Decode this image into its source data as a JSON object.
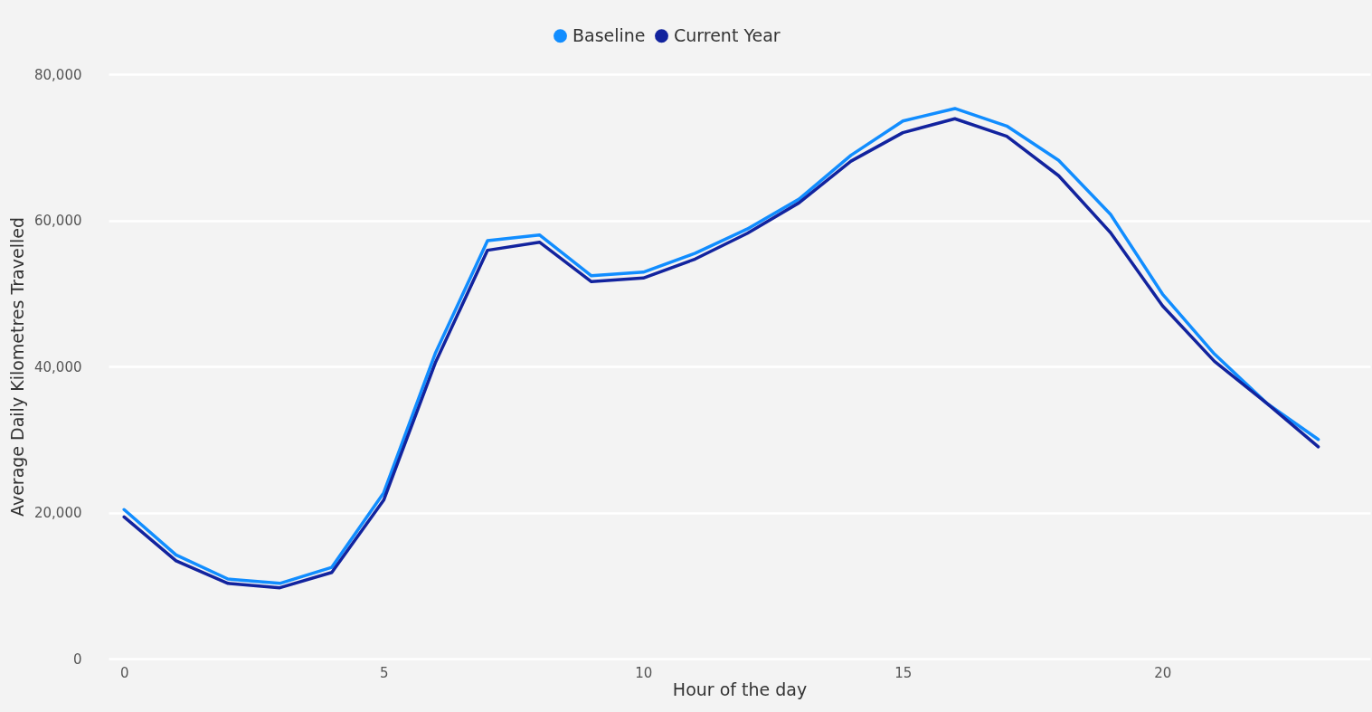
{
  "chart_data": {
    "type": "line",
    "xlabel": "Hour of the day",
    "ylabel": "Average Daily Kilometres Travelled",
    "x": [
      0,
      1,
      2,
      3,
      4,
      5,
      6,
      7,
      8,
      9,
      10,
      11,
      12,
      13,
      14,
      15,
      16,
      17,
      18,
      19,
      20,
      21,
      22,
      23
    ],
    "series": [
      {
        "name": "Baseline",
        "color": "#118dff",
        "values": [
          20400,
          14200,
          10900,
          10300,
          12500,
          22700,
          41900,
          57200,
          58000,
          52400,
          52900,
          55500,
          58800,
          62900,
          68900,
          73600,
          75300,
          72900,
          68200,
          60800,
          49900,
          41700,
          35000,
          30000
        ]
      },
      {
        "name": "Current Year",
        "color": "#12239e",
        "values": [
          19400,
          13400,
          10300,
          9700,
          11800,
          21700,
          40600,
          55900,
          57000,
          51600,
          52100,
          54700,
          58200,
          62400,
          68100,
          72000,
          73900,
          71500,
          66100,
          58300,
          48300,
          40700,
          35000,
          29000
        ]
      }
    ],
    "xlim": [
      -0.3,
      24
    ],
    "xticks": [
      0,
      5,
      10,
      15,
      20
    ],
    "ylim": [
      0,
      80000
    ],
    "yticks": [
      0,
      {
        "value": 20000,
        "label": "20,000"
      },
      {
        "value": 40000,
        "label": "40,000"
      },
      {
        "value": 60000,
        "label": "60,000"
      },
      {
        "value": 80000,
        "label": "80,000"
      }
    ],
    "grid": "y",
    "legend": "top",
    "marker": "none",
    "line_style": "solid"
  }
}
